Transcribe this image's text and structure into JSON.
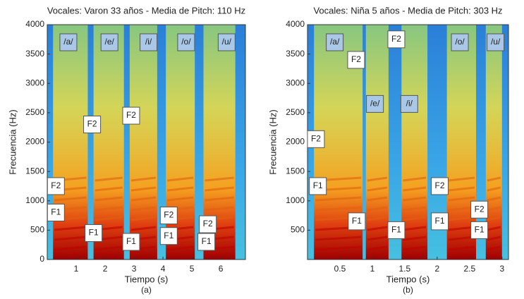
{
  "chart_data": [
    {
      "type": "spectrogram",
      "title": "Vocales: Varon 33 años - Media de Pitch: 110 Hz",
      "xlabel": "Tiempo (s)",
      "ylabel": "Frecuencia (Hz)",
      "caption": "(a)",
      "xlim": [
        0,
        6.85
      ],
      "ylim": [
        0,
        4000
      ],
      "xticks": [
        1,
        2,
        3,
        4,
        5,
        6
      ],
      "yticks": [
        0,
        500,
        1000,
        1500,
        2000,
        2500,
        3000,
        3500,
        4000
      ],
      "vowels": [
        {
          "label": "/a/",
          "x": 0.73,
          "y": 3700,
          "start": 0.2,
          "end": 1.4
        },
        {
          "label": "/e/",
          "x": 2.15,
          "y": 3700,
          "start": 1.6,
          "end": 2.65
        },
        {
          "label": "/i/",
          "x": 3.5,
          "y": 3700,
          "start": 2.85,
          "end": 3.8
        },
        {
          "label": "/o/",
          "x": 4.8,
          "y": 3700,
          "start": 4.1,
          "end": 5.1
        },
        {
          "label": "/u/",
          "x": 6.2,
          "y": 3700,
          "start": 5.4,
          "end": 6.5
        }
      ],
      "annotations": [
        {
          "text": "F2",
          "x": 0.3,
          "y": 1250
        },
        {
          "text": "F1",
          "x": 0.3,
          "y": 800
        },
        {
          "text": "F2",
          "x": 1.55,
          "y": 2300
        },
        {
          "text": "F1",
          "x": 1.6,
          "y": 450
        },
        {
          "text": "F2",
          "x": 2.9,
          "y": 2450
        },
        {
          "text": "F1",
          "x": 2.9,
          "y": 300
        },
        {
          "text": "F2",
          "x": 4.2,
          "y": 750
        },
        {
          "text": "F1",
          "x": 4.2,
          "y": 400
        },
        {
          "text": "F2",
          "x": 5.55,
          "y": 600
        },
        {
          "text": "F1",
          "x": 5.5,
          "y": 300
        }
      ]
    },
    {
      "type": "spectrogram",
      "title": "Vocales: Niña 5 años - Media de Pitch: 303 Hz",
      "xlabel": "Tiempo (s)",
      "ylabel": "Frecuencia (Hz)",
      "caption": "(b)",
      "xlim": [
        0,
        3.1
      ],
      "ylim": [
        0,
        4000
      ],
      "xticks": [
        0.5,
        1,
        1.5,
        2,
        2.5,
        3
      ],
      "yticks": [
        500,
        1000,
        1500,
        2000,
        2500,
        3000,
        3500,
        4000
      ],
      "vowels": [
        {
          "label": "/a/",
          "x": 0.42,
          "y": 3700,
          "start": 0.1,
          "end": 0.85
        },
        {
          "label": "/e/",
          "x": 1.04,
          "y": 2650,
          "start": 0.9,
          "end": 1.25
        },
        {
          "label": "/i/",
          "x": 1.57,
          "y": 2650,
          "start": 1.45,
          "end": 1.85
        },
        {
          "label": "/o/",
          "x": 2.35,
          "y": 3700,
          "start": 2.15,
          "end": 2.6
        },
        {
          "label": "/u/",
          "x": 2.9,
          "y": 3700,
          "start": 2.75,
          "end": 3.0
        }
      ],
      "annotations": [
        {
          "text": "F2",
          "x": 0.13,
          "y": 2050
        },
        {
          "text": "F1",
          "x": 0.16,
          "y": 1250
        },
        {
          "text": "F2",
          "x": 0.75,
          "y": 3400
        },
        {
          "text": "F1",
          "x": 0.76,
          "y": 650
        },
        {
          "text": "F2",
          "x": 1.37,
          "y": 3750
        },
        {
          "text": "F1",
          "x": 1.37,
          "y": 500
        },
        {
          "text": "F2",
          "x": 2.04,
          "y": 1250
        },
        {
          "text": "F1",
          "x": 2.04,
          "y": 650
        },
        {
          "text": "F2",
          "x": 2.65,
          "y": 850
        },
        {
          "text": "F1",
          "x": 2.65,
          "y": 500
        }
      ]
    }
  ]
}
